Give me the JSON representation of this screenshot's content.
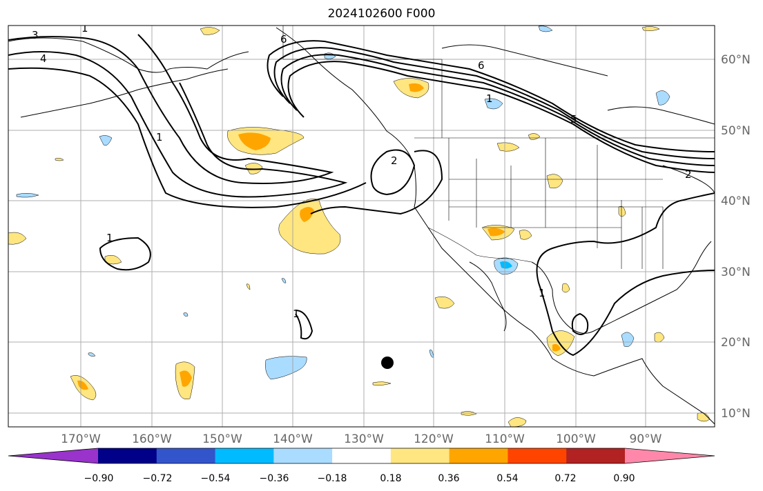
{
  "title": "2024102600 F000",
  "colors": {
    "frame": "#000000",
    "grid": "#999999",
    "coast": "#000000",
    "contour": "#000000",
    "neg_light": "#aadcff",
    "pos_light": "#ffe680",
    "pos_mid": "#ffa500"
  },
  "map": {
    "lon_labels": [
      "170°W",
      "160°W",
      "150°W",
      "140°W",
      "130°W",
      "120°W",
      "110°W",
      "100°W",
      "90°W"
    ],
    "lat_labels": [
      "60°N",
      "50°N",
      "40°N",
      "30°N",
      "20°N",
      "10°N"
    ],
    "contour_labels": [
      "3",
      "4",
      "1",
      "6",
      "6",
      "1",
      "5",
      "2",
      "2",
      "1",
      "1",
      "1",
      "1"
    ]
  },
  "colorbar": {
    "colors": [
      "#9933cc",
      "#000088",
      "#3355cc",
      "#00bbff",
      "#aadcff",
      "#ffffff",
      "#ffe680",
      "#ffa500",
      "#ff4400",
      "#b22222",
      "#ff88aa"
    ],
    "tick_labels": [
      "−0.90",
      "−0.72",
      "−0.54",
      "−0.36",
      "−0.18",
      "0.18",
      "0.36",
      "0.54",
      "0.72",
      "0.90"
    ]
  },
  "marker": {
    "name": "black-dot"
  }
}
